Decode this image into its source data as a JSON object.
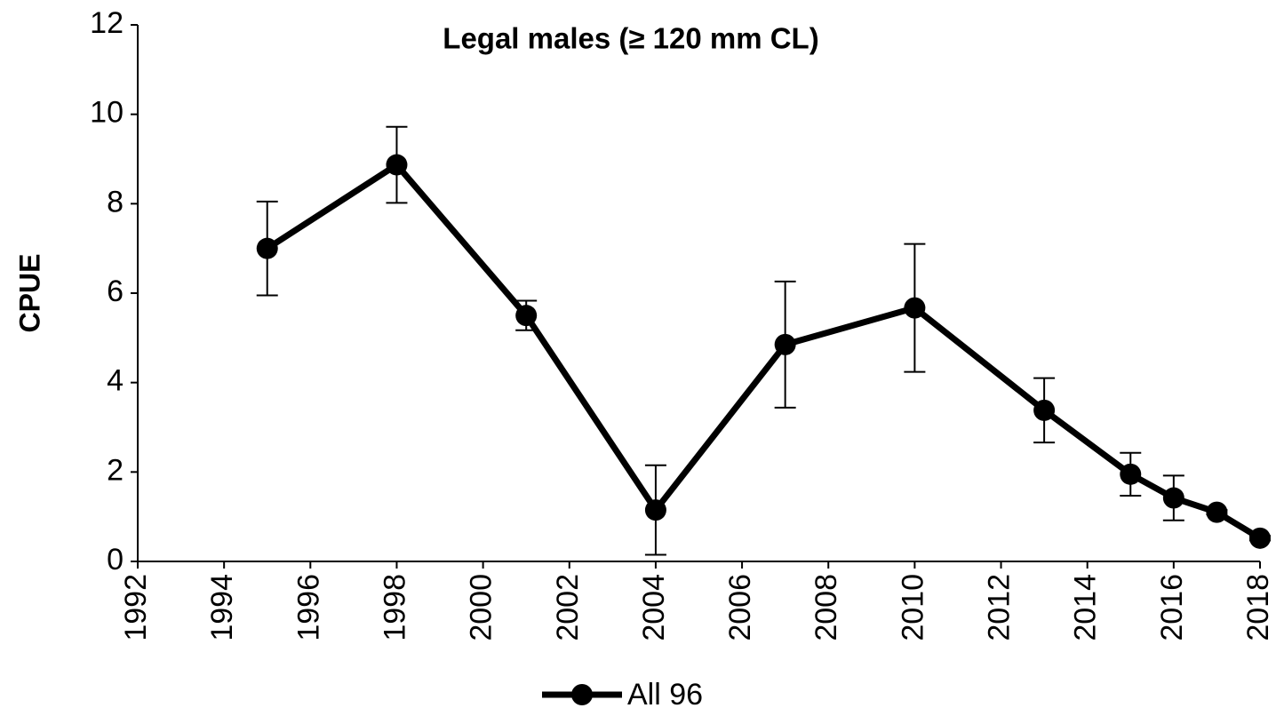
{
  "chart_data": {
    "type": "line",
    "title": "Legal males (≥ 120 mm CL)",
    "y_label": "CPUE",
    "x": [
      1995,
      1998,
      2001,
      2004,
      2007,
      2010,
      2013,
      2015,
      2016,
      2017,
      2018
    ],
    "series": [
      {
        "name": "All 96",
        "color": "#000000",
        "values": [
          7.0,
          8.87,
          5.5,
          1.15,
          4.85,
          5.67,
          3.38,
          1.95,
          1.42,
          1.1,
          0.52
        ],
        "errors": [
          1.05,
          0.85,
          0.33,
          1.0,
          1.41,
          1.43,
          0.72,
          0.48,
          0.5,
          0.05,
          0.05
        ]
      }
    ],
    "xlim": [
      1992,
      2018
    ],
    "xticks": [
      1992,
      1994,
      1996,
      1998,
      2000,
      2002,
      2004,
      2006,
      2008,
      2010,
      2012,
      2014,
      2016,
      2018
    ],
    "ylim": [
      0,
      12
    ],
    "yticks": [
      0,
      2,
      4,
      6,
      8,
      10,
      12
    ],
    "grid": false,
    "legend": "bottom"
  }
}
